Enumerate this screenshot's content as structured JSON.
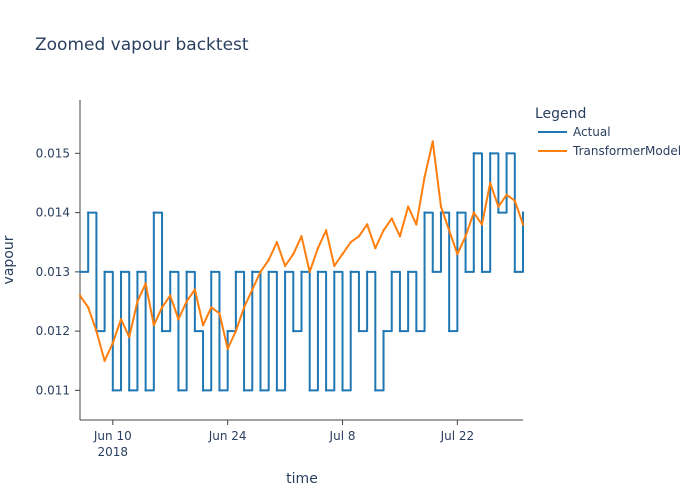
{
  "chart_data": {
    "type": "line",
    "title": "Zoomed vapour backtest",
    "xlabel": "time",
    "ylabel": "vapour",
    "x_range": [
      "2018-06-06",
      "2018-07-30"
    ],
    "ylim": [
      0.0105,
      0.0159
    ],
    "x_ticks": [
      {
        "date": "2018-06-10",
        "label": "Jun 10",
        "sublabel": "2018"
      },
      {
        "date": "2018-06-24",
        "label": "Jun 24",
        "sublabel": ""
      },
      {
        "date": "2018-07-08",
        "label": "Jul 8",
        "sublabel": ""
      },
      {
        "date": "2018-07-22",
        "label": "Jul 22",
        "sublabel": ""
      }
    ],
    "y_ticks": [
      0.011,
      0.012,
      0.013,
      0.014,
      0.015
    ],
    "y_tick_labels": [
      "0.011",
      "0.012",
      "0.013",
      "0.014",
      "0.015"
    ],
    "grid": false,
    "legend_placement": "top-right outside",
    "legend_title": "Legend",
    "series": [
      {
        "name": "Actual",
        "color": "#1f77b4",
        "x": [
          "2018-06-06",
          "2018-06-07",
          "2018-06-08",
          "2018-06-09",
          "2018-06-10",
          "2018-06-11",
          "2018-06-12",
          "2018-06-13",
          "2018-06-14",
          "2018-06-15",
          "2018-06-16",
          "2018-06-17",
          "2018-06-18",
          "2018-06-19",
          "2018-06-20",
          "2018-06-21",
          "2018-06-22",
          "2018-06-23",
          "2018-06-24",
          "2018-06-25",
          "2018-06-26",
          "2018-06-27",
          "2018-06-28",
          "2018-06-29",
          "2018-06-30",
          "2018-07-01",
          "2018-07-02",
          "2018-07-03",
          "2018-07-04",
          "2018-07-05",
          "2018-07-06",
          "2018-07-07",
          "2018-07-08",
          "2018-07-09",
          "2018-07-10",
          "2018-07-11",
          "2018-07-12",
          "2018-07-13",
          "2018-07-14",
          "2018-07-15",
          "2018-07-16",
          "2018-07-17",
          "2018-07-18",
          "2018-07-19",
          "2018-07-20",
          "2018-07-21",
          "2018-07-22",
          "2018-07-23",
          "2018-07-24",
          "2018-07-25",
          "2018-07-26",
          "2018-07-27",
          "2018-07-28",
          "2018-07-29",
          "2018-07-30"
        ],
        "values": [
          0.013,
          0.014,
          0.012,
          0.013,
          0.011,
          0.013,
          0.011,
          0.013,
          0.011,
          0.014,
          0.012,
          0.013,
          0.011,
          0.013,
          0.012,
          0.011,
          0.013,
          0.011,
          0.012,
          0.013,
          0.011,
          0.013,
          0.011,
          0.013,
          0.011,
          0.013,
          0.012,
          0.013,
          0.011,
          0.013,
          0.011,
          0.013,
          0.011,
          0.013,
          0.012,
          0.013,
          0.011,
          0.012,
          0.013,
          0.012,
          0.013,
          0.012,
          0.014,
          0.013,
          0.014,
          0.012,
          0.014,
          0.013,
          0.015,
          0.013,
          0.015,
          0.014,
          0.015,
          0.013,
          0.014
        ]
      },
      {
        "name": "TransformerModel",
        "color": "#ff7f0e",
        "x": [
          "2018-06-06",
          "2018-06-07",
          "2018-06-08",
          "2018-06-09",
          "2018-06-10",
          "2018-06-11",
          "2018-06-12",
          "2018-06-13",
          "2018-06-14",
          "2018-06-15",
          "2018-06-16",
          "2018-06-17",
          "2018-06-18",
          "2018-06-19",
          "2018-06-20",
          "2018-06-21",
          "2018-06-22",
          "2018-06-23",
          "2018-06-24",
          "2018-06-25",
          "2018-06-26",
          "2018-06-27",
          "2018-06-28",
          "2018-06-29",
          "2018-06-30",
          "2018-07-01",
          "2018-07-02",
          "2018-07-03",
          "2018-07-04",
          "2018-07-05",
          "2018-07-06",
          "2018-07-07",
          "2018-07-08",
          "2018-07-09",
          "2018-07-10",
          "2018-07-11",
          "2018-07-12",
          "2018-07-13",
          "2018-07-14",
          "2018-07-15",
          "2018-07-16",
          "2018-07-17",
          "2018-07-18",
          "2018-07-19",
          "2018-07-20",
          "2018-07-21",
          "2018-07-22",
          "2018-07-23",
          "2018-07-24",
          "2018-07-25",
          "2018-07-26",
          "2018-07-27",
          "2018-07-28",
          "2018-07-29",
          "2018-07-30"
        ],
        "values": [
          0.0126,
          0.0124,
          0.012,
          0.0115,
          0.0118,
          0.0122,
          0.0119,
          0.0125,
          0.0128,
          0.0121,
          0.0124,
          0.0126,
          0.0122,
          0.0125,
          0.0127,
          0.0121,
          0.0124,
          0.0123,
          0.0117,
          0.012,
          0.0124,
          0.0127,
          0.013,
          0.0132,
          0.0135,
          0.0131,
          0.0133,
          0.0136,
          0.013,
          0.0134,
          0.0137,
          0.0131,
          0.0133,
          0.0135,
          0.0136,
          0.0138,
          0.0134,
          0.0137,
          0.0139,
          0.0136,
          0.0141,
          0.0138,
          0.0146,
          0.0152,
          0.0141,
          0.0137,
          0.0133,
          0.0136,
          0.014,
          0.0138,
          0.0145,
          0.0141,
          0.0143,
          0.0142,
          0.0138
        ]
      }
    ]
  }
}
